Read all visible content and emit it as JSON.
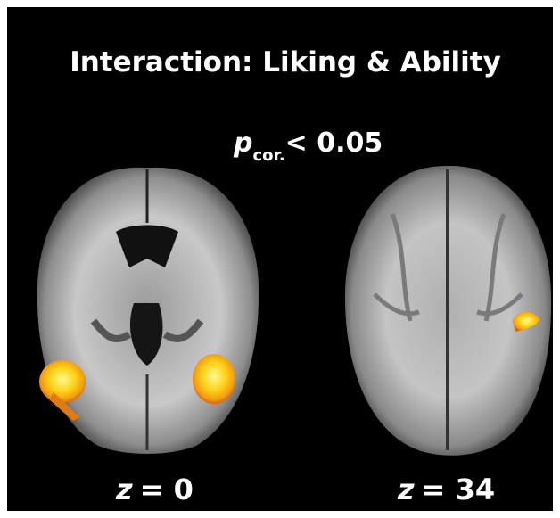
{
  "title": "Interaction: Liking & Ability",
  "threshold": {
    "symbol": "p",
    "subscript": "cor.",
    "text": "< 0.05"
  },
  "slices": [
    {
      "variable": "z",
      "text": "= 0"
    },
    {
      "variable": "z",
      "text": "= 34"
    }
  ]
}
